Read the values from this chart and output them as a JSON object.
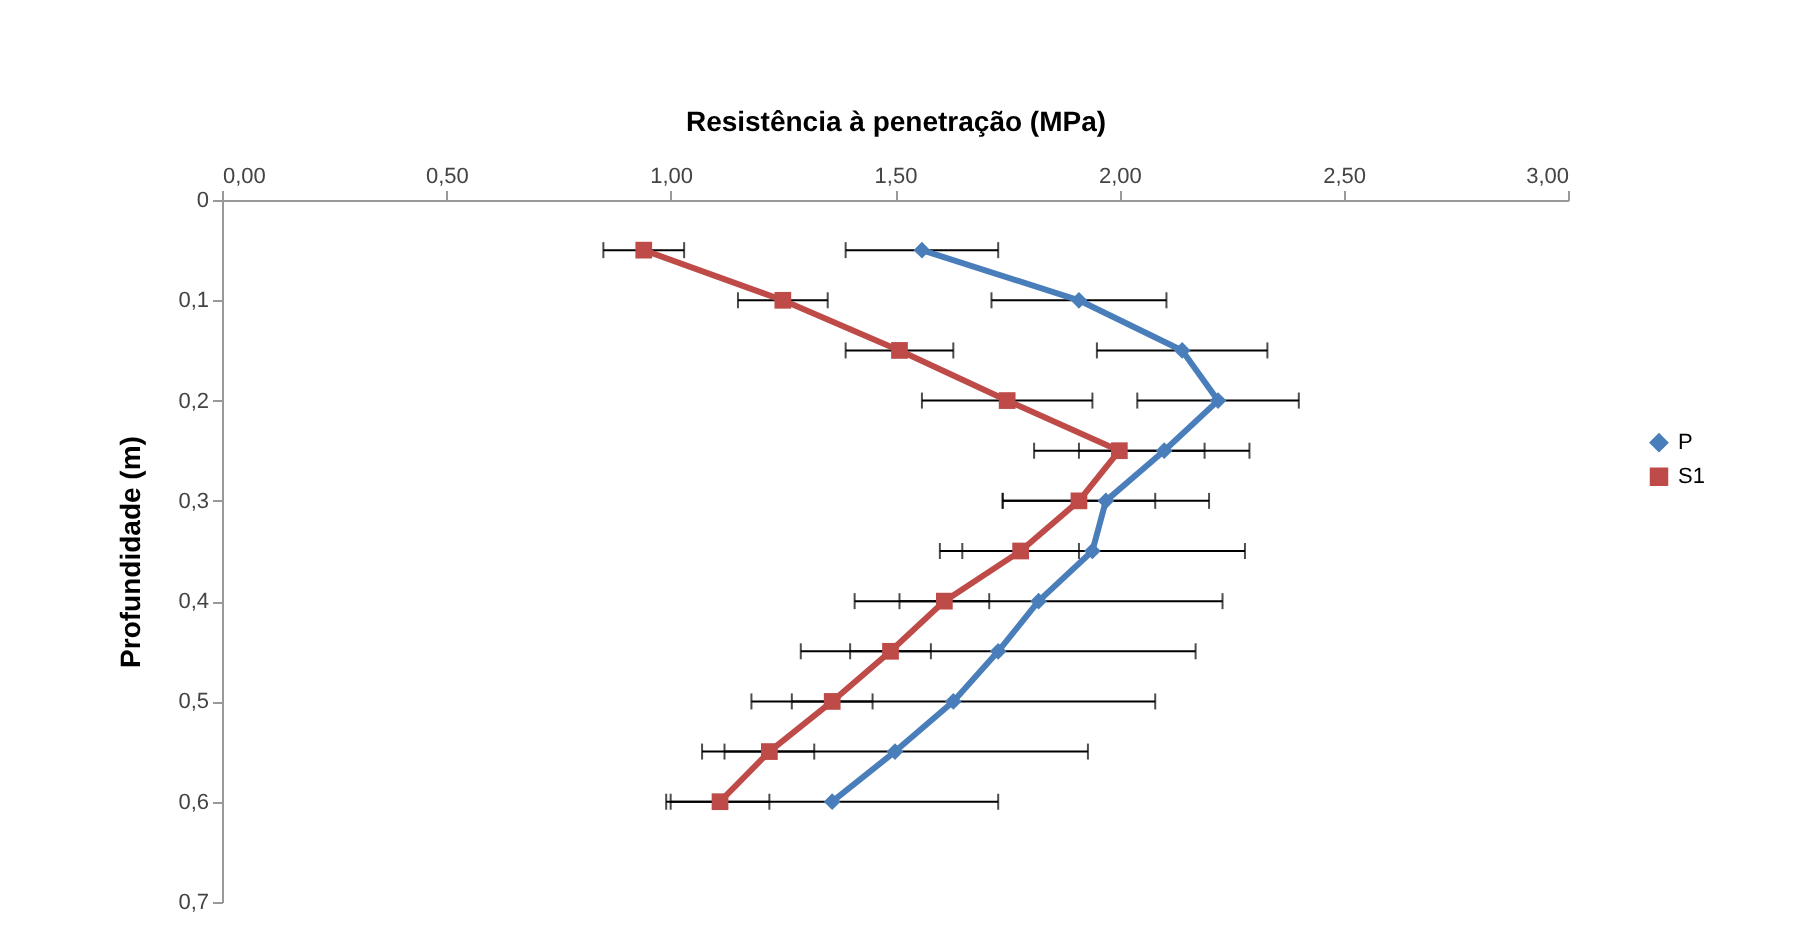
{
  "chart_data": {
    "type": "line",
    "xlabel": "Resistência à penetração (MPa)",
    "ylabel": "Profundidade (m)",
    "xlim": [
      0,
      3
    ],
    "xticks": [
      {
        "value": 0,
        "label": "0,00"
      },
      {
        "value": 0.5,
        "label": "0,50"
      },
      {
        "value": 1,
        "label": "1,00"
      },
      {
        "value": 1.5,
        "label": "1,50"
      },
      {
        "value": 2,
        "label": "2,00"
      },
      {
        "value": 2.5,
        "label": "2,50"
      },
      {
        "value": 3,
        "label": "3,00"
      }
    ],
    "ylim": [
      0.7,
      0
    ],
    "yticks": [
      0,
      {
        "value": 0.1,
        "label": "0,1"
      },
      {
        "value": 0.2,
        "label": "0,2"
      },
      {
        "value": 0.3,
        "label": "0,3"
      },
      {
        "value": 0.4,
        "label": "0,4"
      },
      {
        "value": 0.5,
        "label": "0,5"
      },
      {
        "value": 0.6,
        "label": "0,6"
      },
      {
        "value": 0.7,
        "label": "0,7"
      }
    ],
    "grid": false,
    "legend": "right",
    "series": [
      {
        "name": "P",
        "color": "#4a7ebb",
        "marker": "diamond",
        "x": [
          1.56,
          1.91,
          2.14,
          2.22,
          2.1,
          1.97,
          1.94,
          1.82,
          1.73,
          1.63,
          1.5,
          1.36
        ],
        "values": [
          0.05,
          0.1,
          0.15,
          0.2,
          0.25,
          0.3,
          0.35,
          0.4,
          0.45,
          0.5,
          0.55,
          0.6
        ],
        "xerrors": [
          0.17,
          0.195,
          0.19,
          0.18,
          0.19,
          0.23,
          0.34,
          0.41,
          0.44,
          0.45,
          0.43,
          0.37
        ]
      },
      {
        "name": "S1",
        "color": "#be4b48",
        "marker": "square",
        "x": [
          0.94,
          1.25,
          1.51,
          1.75,
          2.0,
          1.91,
          1.78,
          1.61,
          1.49,
          1.36,
          1.22,
          1.11
        ],
        "values": [
          0.05,
          0.1,
          0.15,
          0.2,
          0.25,
          0.3,
          0.35,
          0.4,
          0.45,
          0.5,
          0.55,
          0.6
        ],
        "xerrors": [
          0.09,
          0.1,
          0.12,
          0.19,
          0.19,
          0.17,
          0.13,
          0.1,
          0.09,
          0.09,
          0.1,
          0.11
        ]
      }
    ]
  }
}
